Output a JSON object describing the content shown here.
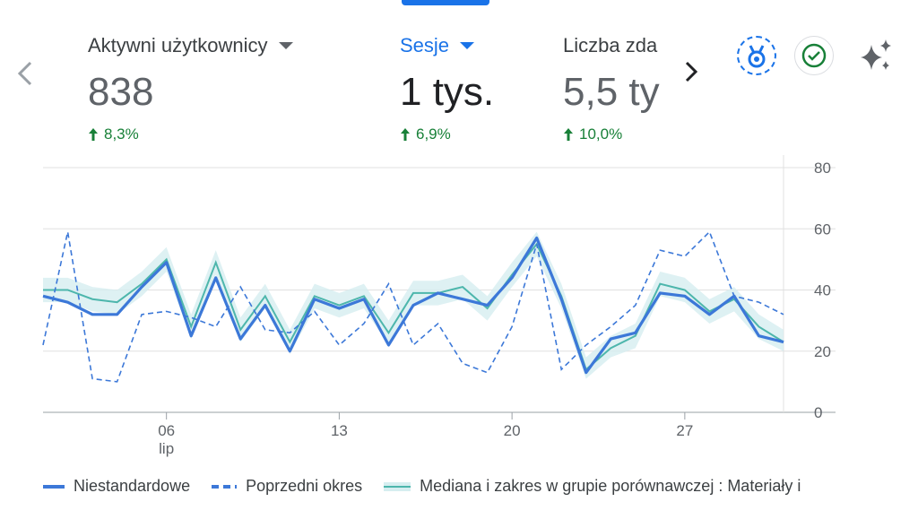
{
  "metrics": [
    {
      "label": "Aktywni użytkownicy",
      "value": "838",
      "delta": "8,3%"
    },
    {
      "label": "Sesje",
      "value": "1 tys.",
      "delta": "6,9%"
    },
    {
      "label": "Liczba zda",
      "value": "5,5 ty",
      "delta": "10,0%"
    }
  ],
  "colors": {
    "accent": "#1a73e8",
    "line_current": "#3c78d8",
    "line_peer": "#4db6ac",
    "band_peer": "#d6eef0",
    "positive": "#188038"
  },
  "icons": {
    "prev": "chevron-left-icon",
    "next": "chevron-right-icon",
    "badge": "medal-icon",
    "check": "check-circle-icon",
    "sparkle": "sparkle-icon"
  },
  "legend": [
    "Niestandardowe",
    "Poprzedni okres",
    "Mediana i zakres w grupie porównawczej : Materiały i"
  ],
  "chart_data": {
    "type": "line",
    "x_ticks": [
      {
        "label": "06",
        "sub": "lip",
        "index": 5
      },
      {
        "label": "13",
        "sub": "",
        "index": 12
      },
      {
        "label": "20",
        "sub": "",
        "index": 19
      },
      {
        "label": "27",
        "sub": "",
        "index": 26
      }
    ],
    "y_ticks": [
      "0",
      "20",
      "40",
      "60",
      "80"
    ],
    "ylim": [
      0,
      80
    ],
    "grid": true,
    "legend_position": "bottom",
    "series": [
      {
        "name": "Niestandardowe",
        "style": "solid",
        "values": [
          38,
          36,
          32,
          32,
          41,
          49,
          25,
          44,
          24,
          35,
          20,
          37,
          34,
          37,
          22,
          35,
          39,
          37,
          35,
          44,
          57,
          37,
          13,
          24,
          26,
          39,
          38,
          32,
          38,
          25,
          23
        ]
      },
      {
        "name": "Poprzedni okres",
        "style": "dashed",
        "values": [
          22,
          59,
          11,
          10,
          32,
          33,
          31,
          28,
          41,
          27,
          26,
          33,
          22,
          29,
          42,
          22,
          29,
          16,
          13,
          28,
          55,
          14,
          22,
          28,
          35,
          53,
          51,
          59,
          38,
          36,
          32
        ]
      },
      {
        "name": "Mediana i zakres w grupie porównawczej : Materiały i",
        "style": "band",
        "values": [
          40,
          40,
          37,
          36,
          42,
          50,
          28,
          49,
          27,
          38,
          23,
          38,
          35,
          38,
          26,
          39,
          39,
          41,
          34,
          45,
          55,
          38,
          14,
          21,
          25,
          42,
          40,
          33,
          37,
          28,
          23
        ],
        "range_low": [
          36,
          36,
          33,
          32,
          38,
          46,
          24,
          45,
          23,
          34,
          19,
          34,
          31,
          34,
          22,
          35,
          35,
          37,
          30,
          41,
          51,
          34,
          11,
          18,
          21,
          38,
          36,
          29,
          33,
          24,
          20
        ],
        "range_high": [
          44,
          44,
          41,
          40,
          46,
          54,
          32,
          53,
          31,
          42,
          27,
          42,
          39,
          42,
          30,
          43,
          43,
          45,
          38,
          49,
          59,
          42,
          18,
          25,
          29,
          46,
          44,
          37,
          41,
          32,
          27
        ]
      }
    ]
  }
}
